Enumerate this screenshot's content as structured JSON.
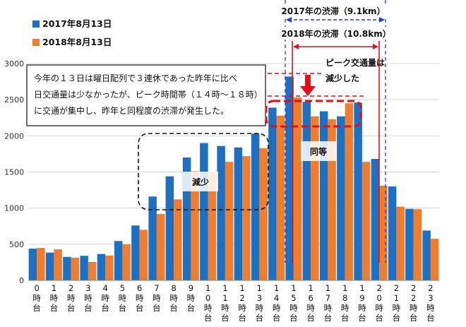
{
  "chart_data": {
    "type": "bar",
    "categories": [
      "0時台",
      "1時台",
      "2時台",
      "3時台",
      "4時台",
      "5時台",
      "6時台",
      "7時台",
      "8時台",
      "9時台",
      "10時台",
      "11時台",
      "12時台",
      "13時台",
      "14時台",
      "15時台",
      "16時台",
      "17時台",
      "18時台",
      "19時台",
      "20時台",
      "21時台",
      "22時台",
      "23時台"
    ],
    "series": [
      {
        "name": "2017年8月13日",
        "color": "#1f6fc0",
        "values": [
          440,
          385,
          325,
          340,
          365,
          545,
          760,
          1160,
          1440,
          1700,
          1900,
          1860,
          1840,
          2030,
          2390,
          2820,
          2470,
          2340,
          2270,
          2460,
          1680,
          1300,
          990,
          690
        ]
      },
      {
        "name": "2018年8月13日",
        "color": "#ed7d31",
        "values": [
          450,
          430,
          315,
          255,
          345,
          500,
          700,
          920,
          1120,
          1510,
          1500,
          1640,
          1720,
          1830,
          2280,
          2530,
          2270,
          2230,
          2450,
          1640,
          1310,
          1020,
          985,
          575
        ]
      }
    ],
    "ylim": [
      0,
      3000
    ],
    "yticks": [
      "0",
      "500",
      "1000",
      "1500",
      "2000",
      "2500",
      "3000"
    ],
    "grid": true,
    "legend": "top-left",
    "annotations": {
      "note_line1": "今年の１３日は曜日配列で３連休であった昨年に比べ",
      "note_line2": "日交通量は少なかったが、ピーク時間帯（１４時～１８時）",
      "note_line3": "に交通が集中し、昨年と同程度の渋滞が発生した。",
      "decrease": "減少",
      "same": "同等",
      "peak_line1": "ピーク交通量は",
      "peak_line2": "減少した",
      "jam2017": "2017年の渋滞（9.1km）",
      "jam2018": "2018年の渋滞（10.8km）"
    },
    "colors": {
      "blue_accent": "#1f3fd6",
      "red_accent": "#e0101a"
    }
  }
}
